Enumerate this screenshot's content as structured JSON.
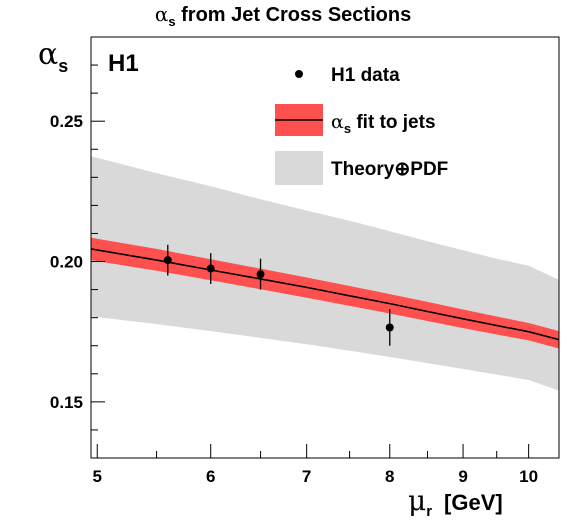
{
  "title": {
    "greek": "α",
    "subscript": "s",
    "rest": " from Jet Cross Sections"
  },
  "experiment_label": "H1",
  "y_axis_label": {
    "greek": "α",
    "subscript": "s"
  },
  "x_axis_label": {
    "greek": "μ",
    "subscript": "r",
    "unit": "[GeV]"
  },
  "legend": {
    "data": "H1 data",
    "fit_greek": "α",
    "fit_subscript": "s",
    "fit_rest": " fit to jets",
    "theory": "Theory⊕PDF"
  },
  "chart_data": {
    "type": "line",
    "x_scale": "log",
    "xlim": [
      4.95,
      10.5
    ],
    "ylim": [
      0.13,
      0.28
    ],
    "x_ticks": [
      5,
      6,
      7,
      8,
      9,
      10
    ],
    "y_ticks": [
      0.15,
      0.2,
      0.25
    ],
    "y_tick_labels": [
      "0.15",
      "0.20",
      "0.25"
    ],
    "colors": {
      "fit_band": "#ff5050",
      "theory_band": "#d9d9d9",
      "fit_line": "#000000",
      "data_points": "#000000"
    },
    "data_points": [
      {
        "x": 5.6,
        "y": 0.2005,
        "err": 0.0055
      },
      {
        "x": 6.0,
        "y": 0.1975,
        "err": 0.0055
      },
      {
        "x": 6.5,
        "y": 0.1955,
        "err": 0.0055
      },
      {
        "x": 8.0,
        "y": 0.1765,
        "err": 0.0065
      }
    ],
    "fit_curve": {
      "x": [
        4.95,
        5.5,
        6.0,
        6.5,
        7.0,
        7.5,
        8.0,
        8.5,
        9.0,
        9.5,
        10.0,
        10.5
      ],
      "central": [
        0.2045,
        0.2005,
        0.197,
        0.1938,
        0.1908,
        0.1878,
        0.185,
        0.1822,
        0.1796,
        0.1772,
        0.175,
        0.1722
      ],
      "fit_upper": [
        0.2085,
        0.2045,
        0.2008,
        0.1975,
        0.1943,
        0.1913,
        0.1884,
        0.1856,
        0.1829,
        0.1804,
        0.1781,
        0.1752
      ],
      "fit_lower": [
        0.2005,
        0.1967,
        0.1933,
        0.1901,
        0.1871,
        0.1842,
        0.1815,
        0.1788,
        0.1763,
        0.174,
        0.1719,
        0.169
      ],
      "theory_upper": [
        0.2375,
        0.2315,
        0.2268,
        0.2222,
        0.2182,
        0.2145,
        0.2108,
        0.2072,
        0.204,
        0.201,
        0.1985,
        0.1935
      ],
      "theory_lower": [
        0.1805,
        0.1777,
        0.1752,
        0.1728,
        0.1705,
        0.1682,
        0.166,
        0.1638,
        0.1617,
        0.1597,
        0.1578,
        0.154
      ]
    }
  }
}
